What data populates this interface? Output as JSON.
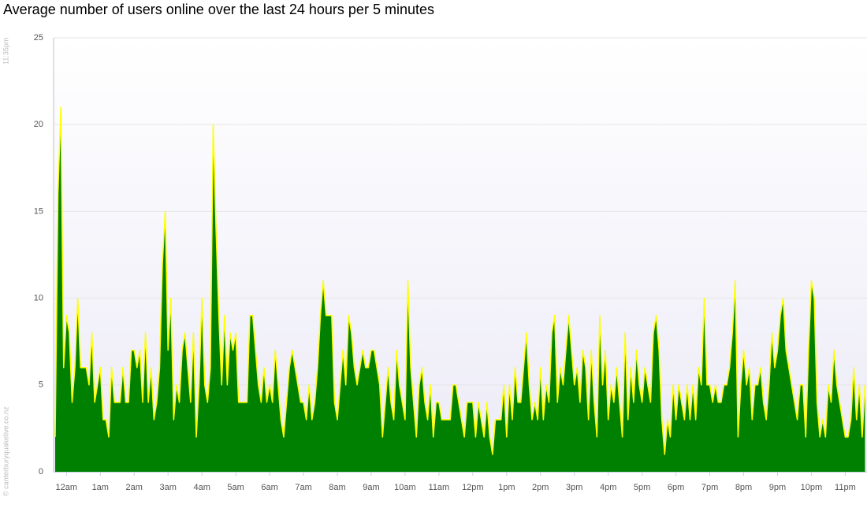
{
  "chart_data": {
    "type": "area",
    "title": "Average number of users online over the last 24 hours per 5 minutes",
    "timestamp": "11:35pm",
    "credit": "© canterburyquakelive.co.nz",
    "categories": [
      null,
      null,
      null,
      null,
      "12am",
      null,
      null,
      null,
      null,
      null,
      null,
      null,
      null,
      null,
      null,
      null,
      "1am",
      null,
      null,
      null,
      null,
      null,
      null,
      null,
      null,
      null,
      null,
      null,
      "2am",
      null,
      null,
      null,
      null,
      null,
      null,
      null,
      null,
      null,
      null,
      null,
      "3am",
      null,
      null,
      null,
      null,
      null,
      null,
      null,
      null,
      null,
      null,
      null,
      "4am",
      null,
      null,
      null,
      null,
      null,
      null,
      null,
      null,
      null,
      null,
      null,
      "5am",
      null,
      null,
      null,
      null,
      null,
      null,
      null,
      null,
      null,
      null,
      null,
      "6am",
      null,
      null,
      null,
      null,
      null,
      null,
      null,
      null,
      null,
      null,
      null,
      "7am",
      null,
      null,
      null,
      null,
      null,
      null,
      null,
      null,
      null,
      null,
      null,
      "8am",
      null,
      null,
      null,
      null,
      null,
      null,
      null,
      null,
      null,
      null,
      null,
      "9am",
      null,
      null,
      null,
      null,
      null,
      null,
      null,
      null,
      null,
      null,
      null,
      "10am",
      null,
      null,
      null,
      null,
      null,
      null,
      null,
      null,
      null,
      null,
      null,
      "11am",
      null,
      null,
      null,
      null,
      null,
      null,
      null,
      null,
      null,
      null,
      null,
      "12pm",
      null,
      null,
      null,
      null,
      null,
      null,
      null,
      null,
      null,
      null,
      null,
      "1pm",
      null,
      null,
      null,
      null,
      null,
      null,
      null,
      null,
      null,
      null,
      null,
      "2pm",
      null,
      null,
      null,
      null,
      null,
      null,
      null,
      null,
      null,
      null,
      null,
      "3pm",
      null,
      null,
      null,
      null,
      null,
      null,
      null,
      null,
      null,
      null,
      null,
      "4pm",
      null,
      null,
      null,
      null,
      null,
      null,
      null,
      null,
      null,
      null,
      null,
      "5pm",
      null,
      null,
      null,
      null,
      null,
      null,
      null,
      null,
      null,
      null,
      null,
      "6pm",
      null,
      null,
      null,
      null,
      null,
      null,
      null,
      null,
      null,
      null,
      null,
      "7pm",
      null,
      null,
      null,
      null,
      null,
      null,
      null,
      null,
      null,
      null,
      null,
      "8pm",
      null,
      null,
      null,
      null,
      null,
      null,
      null,
      null,
      null,
      null,
      null,
      "9pm",
      null,
      null,
      null,
      null,
      null,
      null,
      null,
      null,
      null,
      null,
      null,
      "10pm",
      null,
      null,
      null,
      null,
      null,
      null,
      null,
      null,
      null,
      null,
      null,
      "11pm",
      null,
      null,
      null,
      null,
      null,
      null,
      null
    ],
    "values": [
      2,
      16,
      21,
      6,
      9,
      8,
      4,
      6,
      10,
      6,
      6,
      6,
      5,
      8,
      4,
      5,
      6,
      3,
      3,
      2,
      6,
      4,
      4,
      4,
      6,
      4,
      4,
      7,
      7,
      6,
      7,
      4,
      8,
      4,
      6,
      3,
      4,
      6,
      12,
      15,
      7,
      10,
      3,
      5,
      4,
      7,
      8,
      6,
      4,
      8,
      2,
      5,
      10,
      5,
      4,
      6,
      20,
      14,
      9,
      5,
      9,
      5,
      8,
      7,
      8,
      4,
      4,
      4,
      4,
      9,
      9,
      7,
      5,
      4,
      6,
      4,
      5,
      4,
      7,
      5,
      3,
      2,
      4,
      6,
      7,
      6,
      5,
      4,
      4,
      3,
      5,
      3,
      4,
      6,
      9,
      11,
      9,
      9,
      9,
      4,
      3,
      5,
      7,
      5,
      9,
      8,
      6,
      5,
      6,
      7,
      6,
      6,
      7,
      7,
      6,
      5,
      2,
      4,
      6,
      4,
      3,
      7,
      5,
      4,
      3,
      11,
      6,
      4,
      2,
      5,
      6,
      4,
      3,
      5,
      2,
      4,
      4,
      3,
      3,
      3,
      3,
      5,
      5,
      4,
      3,
      2,
      4,
      4,
      4,
      2,
      4,
      3,
      2,
      4,
      2,
      1,
      3,
      3,
      3,
      5,
      2,
      5,
      3,
      6,
      4,
      4,
      6,
      8,
      5,
      3,
      4,
      3,
      6,
      3,
      5,
      4,
      8,
      9,
      4,
      6,
      5,
      7,
      9,
      7,
      5,
      6,
      4,
      7,
      6,
      3,
      7,
      4,
      2,
      9,
      5,
      7,
      3,
      5,
      4,
      6,
      4,
      2,
      8,
      3,
      6,
      4,
      7,
      5,
      4,
      6,
      5,
      4,
      8,
      9,
      7,
      3,
      1,
      3,
      2,
      5,
      3,
      5,
      4,
      3,
      5,
      3,
      5,
      3,
      6,
      5,
      10,
      5,
      5,
      4,
      5,
      4,
      4,
      5,
      5,
      6,
      8,
      11,
      2,
      5,
      7,
      5,
      6,
      3,
      5,
      5,
      6,
      4,
      3,
      5,
      8,
      6,
      7,
      9,
      10,
      7,
      6,
      5,
      4,
      3,
      5,
      5,
      2,
      7,
      11,
      10,
      4,
      2,
      3,
      2,
      5,
      4,
      7,
      5,
      4,
      3,
      2,
      2,
      3,
      6,
      3,
      5,
      2,
      5
    ],
    "color": "#008000",
    "line_color": "#ffff00",
    "ylim": [
      0,
      25
    ],
    "yticks": [
      0,
      5,
      10,
      15,
      20,
      25
    ],
    "grid": true
  }
}
